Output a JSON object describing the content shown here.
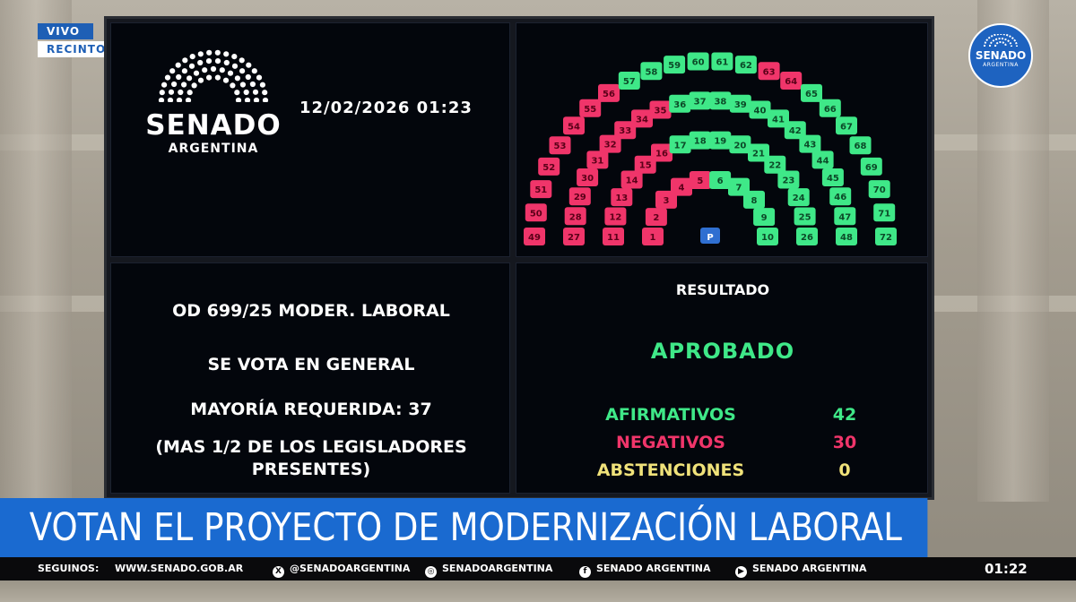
{
  "broadcast": {
    "live_label": "VIVO",
    "location_label": "RECINTO",
    "corner_logo": {
      "line1": "SENADO",
      "line2": "ARGENTINA"
    }
  },
  "board": {
    "logo": {
      "word": "SENADO",
      "sub": "ARGENTINA"
    },
    "datetime": "12/02/2026 01:23",
    "presidency_label": "P",
    "motion": {
      "title": "OD 699/25 MODER. LABORAL",
      "stage": "SE VOTA EN GENERAL",
      "required": "MAYORÍA REQUERIDA: 37",
      "note_line1": "(MAS 1/2 DE LOS LEGISLADORES",
      "note_line2": "PRESENTES)"
    },
    "result": {
      "title": "RESULTADO",
      "outcome": "APROBADO",
      "affirmative_label": "AFIRMATIVOS",
      "affirmative_value": "42",
      "negative_label": "NEGATIVOS",
      "negative_value": "30",
      "abstention_label": "ABSTENCIONES",
      "abstention_value": "0"
    },
    "colors": {
      "affirmative": "#3fe888",
      "negative": "#f0356a",
      "abstention": "#f0e27a"
    },
    "seats": {
      "negative": [
        1,
        2,
        3,
        4,
        5,
        11,
        12,
        13,
        14,
        15,
        16,
        27,
        28,
        29,
        30,
        31,
        32,
        33,
        34,
        35,
        49,
        50,
        51,
        52,
        53,
        54,
        55,
        56,
        63,
        64
      ],
      "rows": [
        [
          1,
          2,
          3,
          4,
          5,
          6,
          7,
          8,
          9,
          10
        ],
        [
          11,
          12,
          13,
          14,
          15,
          16,
          17,
          18,
          19,
          20,
          21,
          22,
          23,
          24,
          25,
          26
        ],
        [
          27,
          28,
          29,
          30,
          31,
          32,
          33,
          34,
          35,
          36,
          37,
          38,
          39,
          40,
          41,
          42,
          43,
          44,
          45,
          46,
          47,
          48
        ],
        [
          49,
          50,
          51,
          52,
          53,
          54,
          55,
          56,
          57,
          58,
          59,
          60,
          61,
          62,
          63,
          64,
          65,
          66,
          67,
          68,
          69,
          70,
          71,
          72
        ]
      ]
    }
  },
  "lower_third": {
    "headline": "VOTAN EL PROYECTO DE MODERNIZACIÓN LABORAL",
    "follow_label": "SEGUINOS:",
    "website": "WWW.SENADO.GOB.AR",
    "social": [
      {
        "icon": "x-icon",
        "glyph": "X",
        "text": "@SENADOARGENTINA"
      },
      {
        "icon": "instagram-icon",
        "glyph": "◎",
        "text": "SENADOARGENTINA"
      },
      {
        "icon": "facebook-icon",
        "glyph": "f",
        "text": "SENADO ARGENTINA"
      },
      {
        "icon": "youtube-icon",
        "glyph": "▶",
        "text": "SENADO ARGENTINA"
      }
    ],
    "clock": "01:22"
  }
}
